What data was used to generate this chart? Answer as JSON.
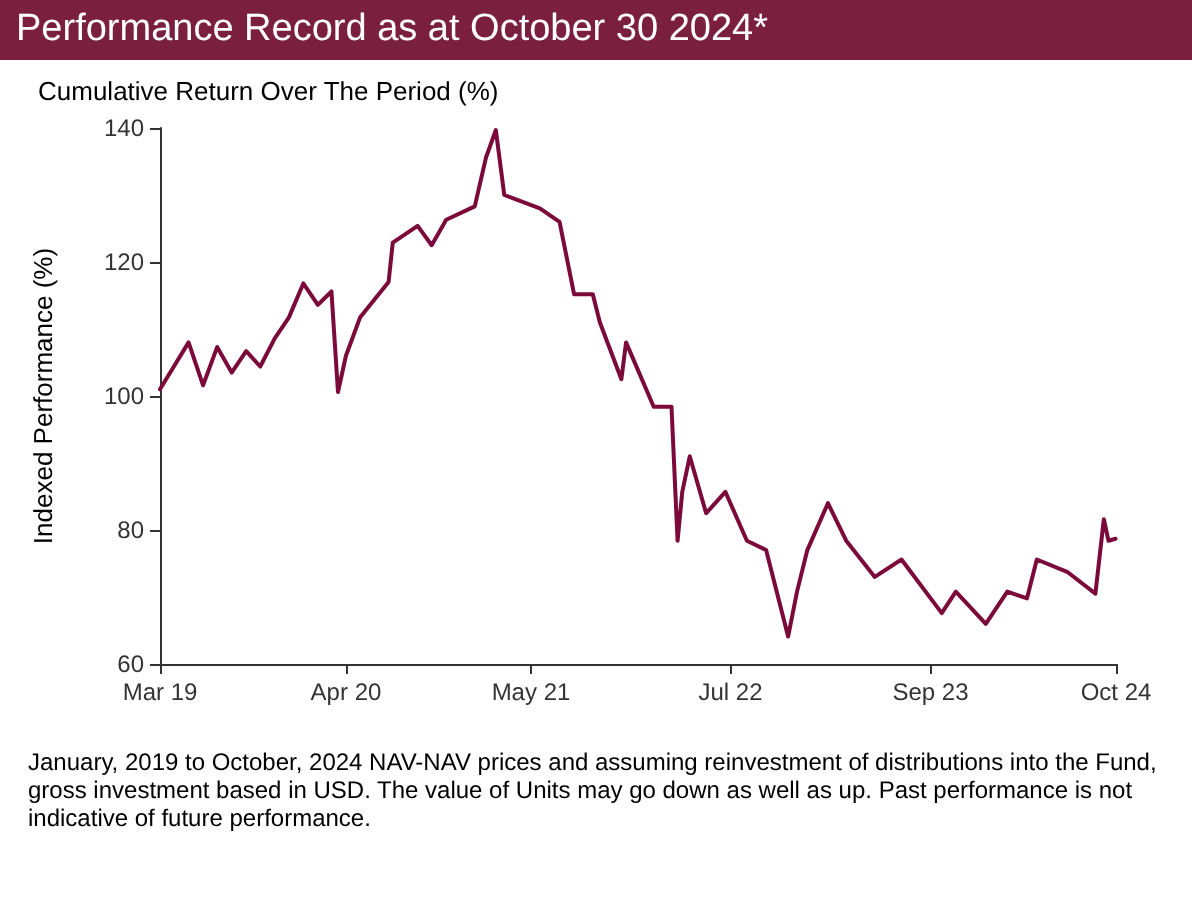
{
  "chart_data": {
    "type": "line",
    "title": "Performance Record as at October 30 2024*",
    "subtitle": "Cumulative Return Over The Period (%)",
    "ylabel": "Indexed Performance (%)",
    "x": [
      "2019-03-01",
      "2019-05",
      "2019-06",
      "2019-07",
      "2019-08",
      "2019-09",
      "2019-10",
      "2019-11",
      "2019-12",
      "2020-01",
      "2020-02",
      "2020-03-01",
      "2020-03-15",
      "2020-04",
      "2020-05",
      "2020-07",
      "2020-07-10",
      "2020-09",
      "2020-10",
      "2020-11",
      "2021-01",
      "2021-01-25",
      "2021-02-15",
      "2021-03-05",
      "2021-05-20",
      "2021-07",
      "2021-08",
      "2021-09-10",
      "2021-09-25",
      "2021-11-10",
      "2021-11-20",
      "2022-01-18",
      "2022-02-25",
      "2022-03-10",
      "2022-03-20",
      "2022-04-05",
      "2022-05-10",
      "2022-06-20",
      "2022-08-05",
      "2022-09-15",
      "2022-11",
      "2022-11-20",
      "2022-12-12",
      "2023-01-25",
      "2023-03-05",
      "2023-05-05",
      "2023-07",
      "2023-09-25",
      "2023-10-25",
      "2023-12-28",
      "2024-02-12",
      "2024-03-25",
      "2024-04-15",
      "2024-06-20",
      "2024-08-18",
      "2024-09-05",
      "2024-09-15",
      "2024-09-30"
    ],
    "series": [
      {
        "color": "#7b0a3a",
        "values": [
          101,
          108,
          101.6,
          107.3,
          103.5,
          106.7,
          104.4,
          108.6,
          111.7,
          116.8,
          113.6,
          115.6,
          100.6,
          106,
          111.7,
          117,
          122.9,
          125.4,
          122.5,
          126.3,
          128.3,
          135.6,
          139.7,
          130,
          128,
          126,
          115.2,
          115.2,
          111,
          102.5,
          108,
          98.4,
          98.4,
          78.4,
          85.7,
          91,
          82.5,
          85.7,
          78.4,
          77,
          64.1,
          70.8,
          77,
          84,
          78.4,
          73,
          75.6,
          67.6,
          70.8,
          66,
          70.8,
          69.8,
          75.6,
          73.7,
          70.5,
          81.6,
          78.4,
          78.7
        ]
      }
    ],
    "xlim": [
      "2019-03-01",
      "2024-10-01"
    ],
    "xticks": [
      {
        "value": "2019-03-01",
        "label": "Mar 19"
      },
      {
        "value": "2020-04-01",
        "label": "Apr 20"
      },
      {
        "value": "2021-05-01",
        "label": "May 21"
      },
      {
        "value": "2022-07-01",
        "label": "Jul 22"
      },
      {
        "value": "2023-09-01",
        "label": "Sep 23"
      },
      {
        "value": "2024-10-01",
        "label": "Oct 24"
      }
    ],
    "ylim": [
      60,
      140
    ],
    "yticks": [
      60,
      80,
      100,
      120,
      140
    ],
    "grid": false,
    "marker": "none",
    "line_style": "solid",
    "annotations": [
      "January, 2019 to October, 2024 NAV-NAV prices and assuming reinvestment of distributions into the Fund, gross investment based in USD. The value of Units may go down as well as up. Past performance is not indicative of future performance."
    ]
  }
}
